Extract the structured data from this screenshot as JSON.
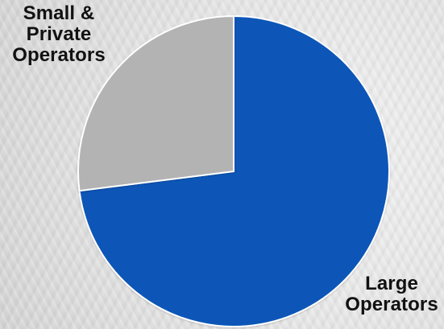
{
  "chart_data": {
    "type": "pie",
    "slices": [
      {
        "name": "Large Operators",
        "value": 73,
        "color": "#0b56b7",
        "label_lines": [
          "Large",
          "Operators"
        ]
      },
      {
        "name": "Small & Private Operators",
        "value": 27,
        "color": "#b3b3b3",
        "label_lines": [
          "Small &",
          "Private",
          "Operators"
        ]
      }
    ],
    "start_angle_degrees": 0,
    "direction": "clockwise",
    "title": ""
  }
}
